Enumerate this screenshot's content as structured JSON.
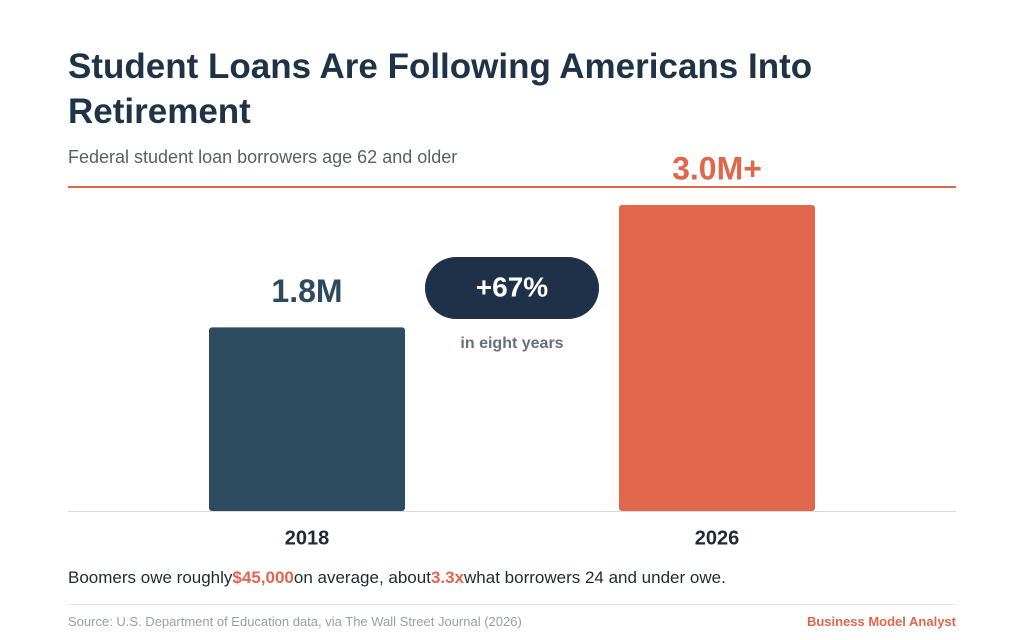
{
  "chart_data": {
    "type": "bar",
    "title": "Student Loans Are Following Americans Into Retirement",
    "subtitle": "Federal student loan borrowers age 62 and older",
    "categories": [
      "2018",
      "2026"
    ],
    "values": [
      1.8,
      3.0
    ],
    "value_labels": [
      "1.8M",
      "3.0M+"
    ],
    "colors": [
      "#2e4a5e",
      "#e0664c"
    ],
    "annotation": {
      "change": "+67%",
      "period": "in eight years"
    },
    "note": [
      "Boomers owe roughly",
      "$45,000",
      "on average, about",
      "3.3x",
      "what borrowers 24 and under owe."
    ],
    "source": "Source: U.S. Department of Education data, via The Wall Street Journal (2026)",
    "brand": "Business Model Analyst"
  }
}
